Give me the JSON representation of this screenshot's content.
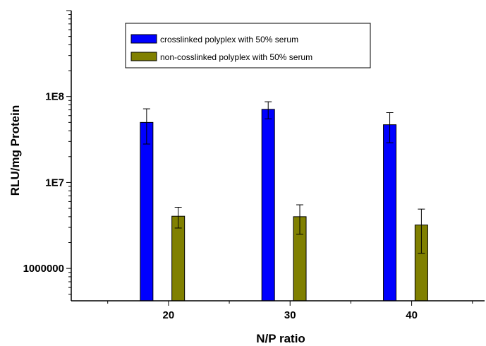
{
  "chart_data": {
    "type": "bar",
    "x_scale": "linear",
    "y_scale": "log",
    "xlabel": "N/P ratio",
    "ylabel": "RLU/mg Protein",
    "categories": [
      "20",
      "30",
      "40"
    ],
    "x_ticks": [
      "20",
      "30",
      "40"
    ],
    "y_ticks": [
      {
        "value": 1000000,
        "label": "1000000"
      },
      {
        "value": 10000000,
        "label": "1E7"
      },
      {
        "value": 100000000,
        "label": "1E8"
      }
    ],
    "ylim": [
      420000,
      1000000000
    ],
    "xlim": [
      12,
      46
    ],
    "grid": false,
    "legend_position": "top-center",
    "series": [
      {
        "name": "crosslinked polyplex with 50% serum",
        "color": "#0000ff",
        "values": [
          50000000,
          71000000,
          47000000
        ],
        "errors": [
          22000000,
          16000000,
          18000000
        ],
        "x": [
          18.2,
          28.2,
          38.2
        ]
      },
      {
        "name": "non-cosslinked polyplex with 50% serum",
        "color": "#808000",
        "values": [
          4050000,
          4000000,
          3200000
        ],
        "errors": [
          1100000,
          1500000,
          1700000
        ],
        "x": [
          20.8,
          30.8,
          40.8
        ]
      }
    ]
  }
}
